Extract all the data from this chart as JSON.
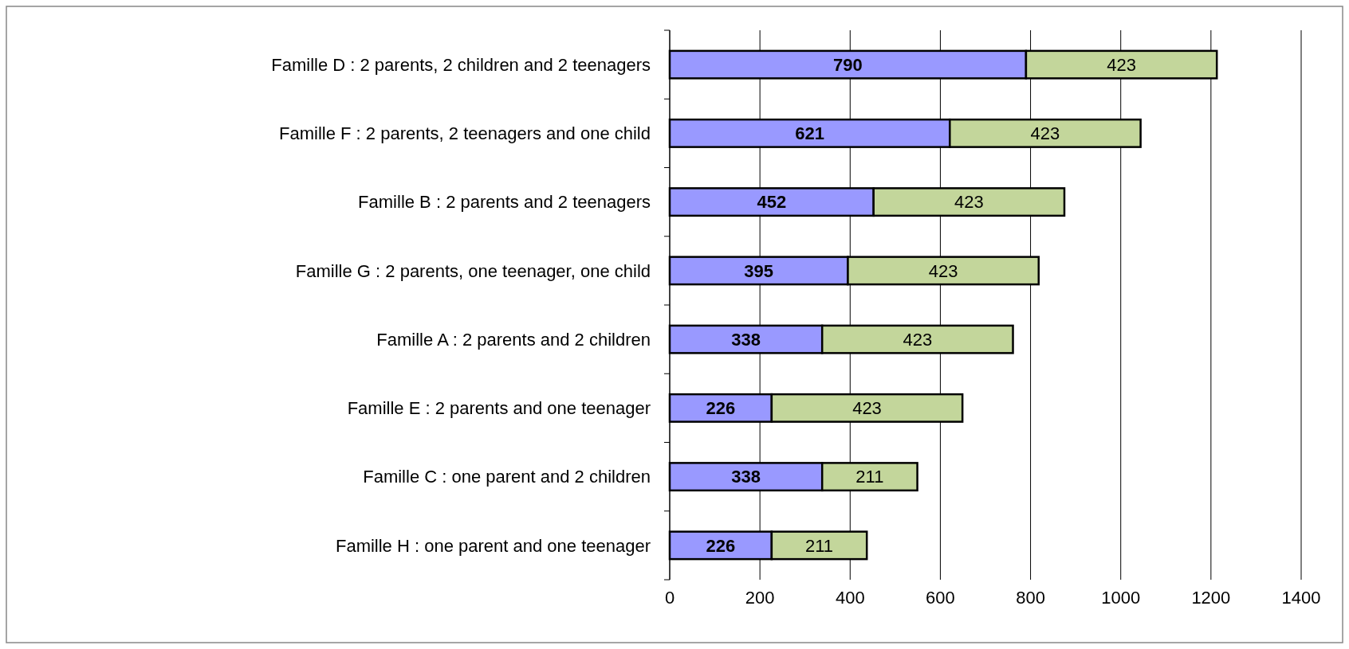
{
  "chart_data": {
    "type": "bar",
    "orientation": "horizontal",
    "stacked": true,
    "categories": [
      "Famille D : 2 parents, 2 children and 2 teenagers",
      "Famille F : 2 parents, 2 teenagers and one child",
      "Famille B : 2 parents and 2 teenagers",
      "Famille G : 2 parents, one teenager, one child",
      "Famille A : 2 parents and 2 children",
      "Famille E : 2 parents and one teenager",
      "Famille C : one parent and 2 children",
      "Famille H : one parent and one teenager"
    ],
    "series": [
      {
        "color": "#9999ff",
        "values": [
          790,
          621,
          452,
          395,
          338,
          226,
          338,
          226
        ]
      },
      {
        "color": "#c3d69b",
        "values": [
          423,
          423,
          423,
          423,
          423,
          423,
          211,
          211
        ]
      }
    ],
    "xlim": [
      0,
      1400
    ],
    "xticks": [
      0,
      200,
      400,
      600,
      800,
      1000,
      1200,
      1400
    ],
    "grid": "x",
    "data_labels": true
  }
}
